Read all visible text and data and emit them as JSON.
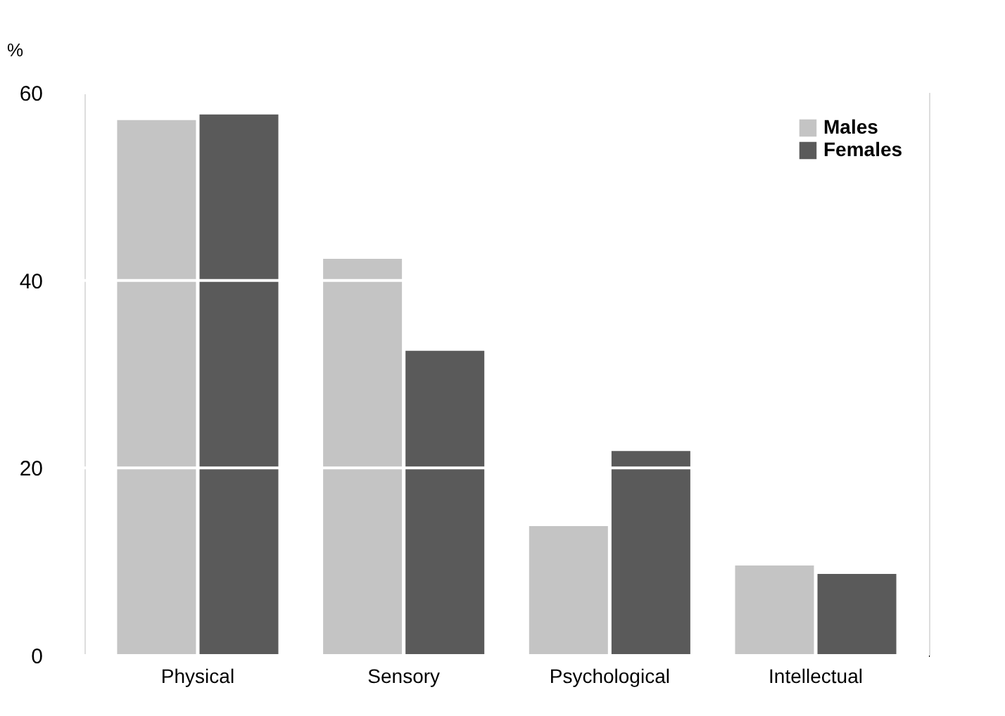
{
  "chart_data": {
    "type": "bar",
    "ylabel": "%",
    "categories": [
      "Physical",
      "Sensory",
      "Psychological",
      "Intellectual"
    ],
    "series": [
      {
        "name": "Males",
        "color": "#c4c4c4",
        "values": [
          57.1,
          42.3,
          13.8,
          9.6
        ]
      },
      {
        "name": "Females",
        "color": "#5a5a5a",
        "values": [
          57.7,
          32.5,
          21.8,
          8.7
        ]
      }
    ],
    "ylim": [
      0,
      60
    ],
    "yticks": [
      0,
      20,
      40,
      60
    ],
    "grid": "y",
    "legend": "top right"
  }
}
